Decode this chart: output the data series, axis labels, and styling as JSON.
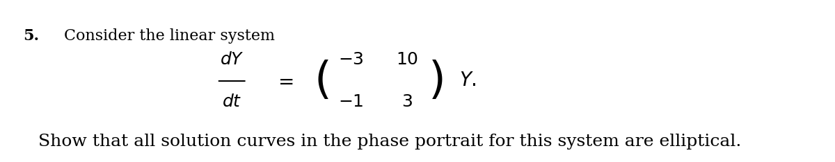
{
  "background_color": "#ffffff",
  "fig_width": 12.0,
  "fig_height": 2.34,
  "dpi": 100,
  "problem_number": "5.",
  "intro_text": "Consider the linear system",
  "matrix_row1": [
    "-3",
    "10"
  ],
  "matrix_row2": [
    "-1",
    "3"
  ],
  "lhs_numerator": "dY",
  "lhs_denominator": "dt",
  "rhs_var": "Y.",
  "footer_text": "Show that all solution curves in the phase portrait for this system are elliptical.",
  "text_color": "#000000",
  "intro_fontsize": 16,
  "equation_fontsize": 16,
  "footer_fontsize": 18,
  "number_fontsize": 16
}
